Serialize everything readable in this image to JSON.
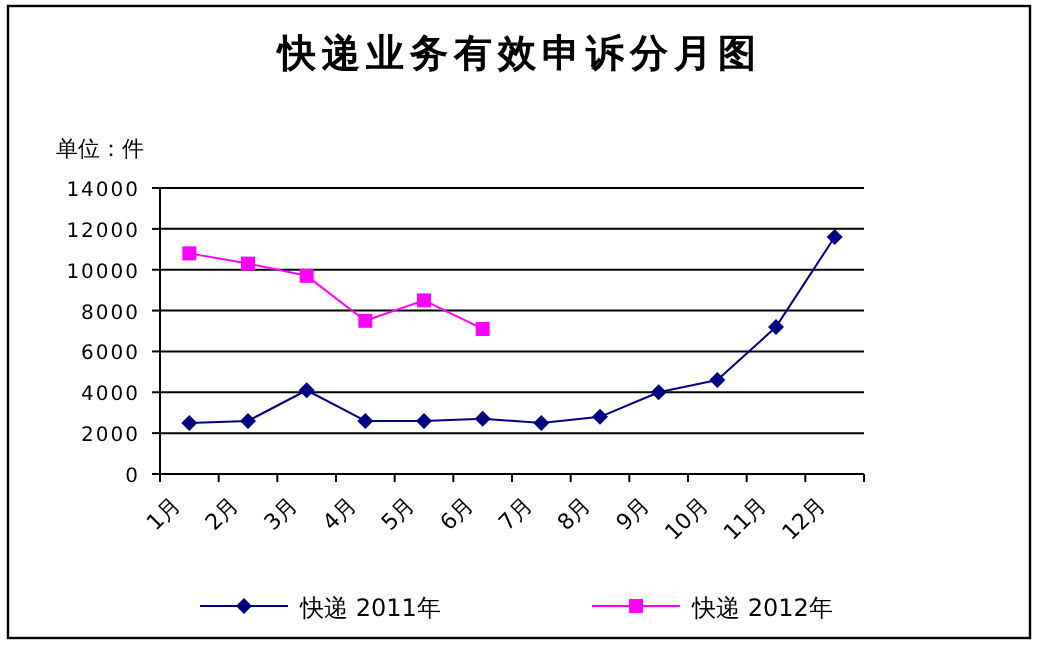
{
  "chart_data": {
    "type": "line",
    "title": "快递业务有效申诉分月图",
    "ylabel": "单位：件",
    "categories": [
      "1月",
      "2月",
      "3月",
      "4月",
      "5月",
      "6月",
      "7月",
      "8月",
      "9月",
      "10月",
      "11月",
      "12月"
    ],
    "series": [
      {
        "name": "快递  2011年",
        "color": "#000080",
        "marker": "diamond",
        "values": [
          2500,
          2600,
          4100,
          2600,
          2600,
          2700,
          2500,
          2800,
          4000,
          4600,
          7200,
          11600
        ]
      },
      {
        "name": "快递  2012年",
        "color": "#ff00ff",
        "marker": "square",
        "values": [
          10800,
          10300,
          9700,
          7500,
          8500,
          7100,
          null,
          null,
          null,
          null,
          null,
          null
        ]
      }
    ],
    "ylim": [
      0,
      14000
    ],
    "yticks": [
      0,
      2000,
      4000,
      6000,
      8000,
      10000,
      12000,
      14000
    ],
    "grid": "y",
    "legend": "bottom"
  }
}
